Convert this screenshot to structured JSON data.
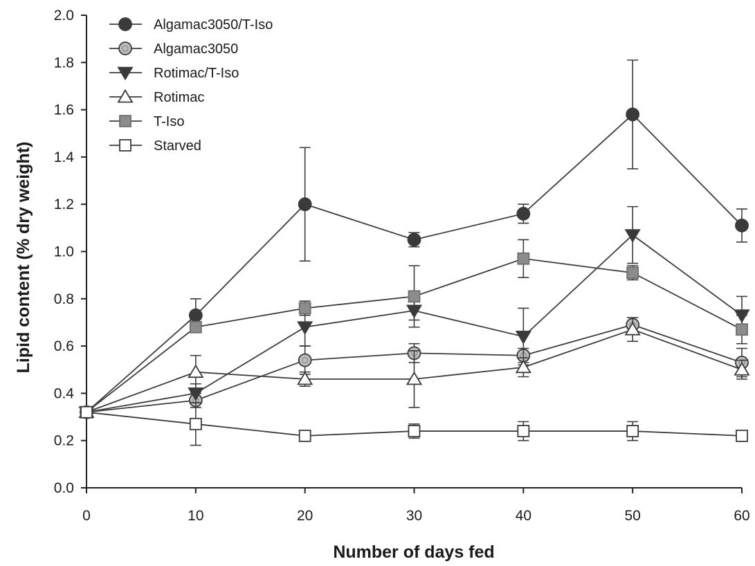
{
  "chart_data": {
    "type": "line",
    "xlabel": "Number of days fed",
    "ylabel": "Lipid content (% dry weight)",
    "xlim": [
      0,
      60
    ],
    "ylim": [
      0.0,
      2.0
    ],
    "xticks": [
      "0",
      "10",
      "20",
      "30",
      "40",
      "50",
      "60"
    ],
    "yticks": [
      "0.0",
      "0.2",
      "0.4",
      "0.6",
      "0.8",
      "1.0",
      "1.2",
      "1.4",
      "1.6",
      "1.8",
      "2.0"
    ],
    "grid": false,
    "legend_position": "top-left",
    "x": [
      0,
      10,
      20,
      30,
      40,
      50,
      60
    ],
    "series": [
      {
        "name": "Algamac3050/T-Iso",
        "marker": "circle-filled",
        "fill": "#3a3a3a",
        "values": [
          0.32,
          0.73,
          1.2,
          1.05,
          1.16,
          1.58,
          1.11
        ],
        "errors": [
          0,
          0.07,
          0.24,
          0.03,
          0.04,
          0.23,
          0.07
        ]
      },
      {
        "name": "Algamac3050",
        "marker": "circle-open-gray",
        "fill": "#bdbdbd",
        "values": [
          0.32,
          0.37,
          0.54,
          0.57,
          0.56,
          0.69,
          0.53
        ],
        "errors": [
          0,
          0.03,
          0.06,
          0.04,
          0.03,
          0.03,
          0.06
        ]
      },
      {
        "name": "Rotimac/T-Iso",
        "marker": "triangle-down-filled",
        "fill": "#3a3a3a",
        "values": [
          0.32,
          0.4,
          0.68,
          0.75,
          0.64,
          1.07,
          0.73
        ],
        "errors": [
          0,
          0.04,
          0.08,
          0.04,
          0.12,
          0.12,
          0.08
        ]
      },
      {
        "name": "Rotimac",
        "marker": "triangle-up-open",
        "fill": "#ffffff",
        "values": [
          0.32,
          0.49,
          0.46,
          0.46,
          0.51,
          0.67,
          0.5
        ],
        "errors": [
          0,
          0.07,
          0.03,
          0.12,
          0.04,
          0.05,
          0.04
        ]
      },
      {
        "name": "T-Iso",
        "marker": "square-filled-gray",
        "fill": "#8c8c8c",
        "values": [
          0.32,
          0.68,
          0.76,
          0.81,
          0.97,
          0.91,
          0.67
        ],
        "errors": [
          0,
          0.02,
          0.03,
          0.13,
          0.08,
          0.03,
          0.06
        ]
      },
      {
        "name": "Starved",
        "marker": "square-open",
        "fill": "#ffffff",
        "values": [
          0.32,
          0.27,
          0.22,
          0.24,
          0.24,
          0.24,
          0.22
        ],
        "errors": [
          0,
          0.09,
          0.02,
          0.03,
          0.04,
          0.04,
          0.01
        ]
      }
    ]
  }
}
